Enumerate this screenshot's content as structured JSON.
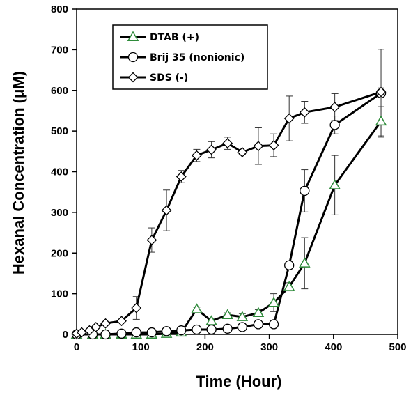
{
  "chart_data": {
    "type": "line",
    "xlabel": "Time (Hour)",
    "ylabel": "Hexanal  Concentration (μM)",
    "xlim": [
      0,
      500
    ],
    "ylim": [
      0,
      800
    ],
    "x_ticks": [
      "0",
      "100",
      "200",
      "300",
      "400",
      "500"
    ],
    "y_ticks": [
      "0",
      "100",
      "200",
      "300",
      "400",
      "500",
      "600",
      "700",
      "800"
    ],
    "grid": false,
    "legend_position": "top-left",
    "series": [
      {
        "name": "DTAB (+)",
        "marker": "triangle",
        "marker_color": "#2e8b3a",
        "points": [
          {
            "x": 0,
            "y": 0
          },
          {
            "x": 25,
            "y": 0
          },
          {
            "x": 45,
            "y": 0
          },
          {
            "x": 70,
            "y": 0
          },
          {
            "x": 93,
            "y": 0
          },
          {
            "x": 117,
            "y": 0
          },
          {
            "x": 140,
            "y": 2
          },
          {
            "x": 163,
            "y": 5
          },
          {
            "x": 187,
            "y": 62,
            "err": 5
          },
          {
            "x": 210,
            "y": 33,
            "err": 5
          },
          {
            "x": 235,
            "y": 48,
            "err": 5
          },
          {
            "x": 258,
            "y": 43,
            "err": 8
          },
          {
            "x": 283,
            "y": 53,
            "err": 8
          },
          {
            "x": 307,
            "y": 78,
            "err": 22
          },
          {
            "x": 331,
            "y": 117,
            "err": 10
          },
          {
            "x": 355,
            "y": 175,
            "err": 63
          },
          {
            "x": 402,
            "y": 367,
            "err": 73
          },
          {
            "x": 474,
            "y": 524,
            "err": 36
          }
        ]
      },
      {
        "name": "Brij 35 (nonionic)",
        "marker": "circle",
        "marker_color": "#ffffff",
        "points": [
          {
            "x": 0,
            "y": 0
          },
          {
            "x": 25,
            "y": 0
          },
          {
            "x": 45,
            "y": 0
          },
          {
            "x": 70,
            "y": 2
          },
          {
            "x": 93,
            "y": 5
          },
          {
            "x": 117,
            "y": 5
          },
          {
            "x": 140,
            "y": 8
          },
          {
            "x": 163,
            "y": 10
          },
          {
            "x": 187,
            "y": 12
          },
          {
            "x": 210,
            "y": 12
          },
          {
            "x": 235,
            "y": 14
          },
          {
            "x": 258,
            "y": 18
          },
          {
            "x": 283,
            "y": 25
          },
          {
            "x": 307,
            "y": 25
          },
          {
            "x": 331,
            "y": 170
          },
          {
            "x": 355,
            "y": 353,
            "err": 52
          },
          {
            "x": 402,
            "y": 515,
            "err": 22
          },
          {
            "x": 474,
            "y": 593,
            "err": 108
          }
        ]
      },
      {
        "name": "SDS (-)",
        "marker": "diamond",
        "marker_color": "#ffffff",
        "points": [
          {
            "x": 0,
            "y": 2
          },
          {
            "x": 8,
            "y": 5
          },
          {
            "x": 20,
            "y": 10
          },
          {
            "x": 30,
            "y": 18
          },
          {
            "x": 45,
            "y": 27
          },
          {
            "x": 70,
            "y": 33
          },
          {
            "x": 93,
            "y": 65,
            "err": 28
          },
          {
            "x": 117,
            "y": 232,
            "err": 30
          },
          {
            "x": 140,
            "y": 305,
            "err": 50
          },
          {
            "x": 163,
            "y": 388,
            "err": 15
          },
          {
            "x": 187,
            "y": 440,
            "err": 15
          },
          {
            "x": 210,
            "y": 454,
            "err": 20
          },
          {
            "x": 235,
            "y": 470,
            "err": 15
          },
          {
            "x": 258,
            "y": 448,
            "err": 5
          },
          {
            "x": 283,
            "y": 463,
            "err": 45
          },
          {
            "x": 307,
            "y": 465,
            "err": 28
          },
          {
            "x": 331,
            "y": 531,
            "err": 55
          },
          {
            "x": 355,
            "y": 546,
            "err": 27
          },
          {
            "x": 402,
            "y": 559,
            "err": 33
          },
          {
            "x": 474,
            "y": 596,
            "err": 10
          }
        ]
      }
    ]
  }
}
